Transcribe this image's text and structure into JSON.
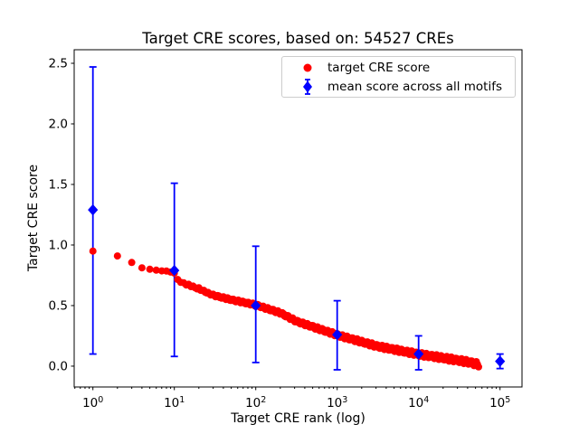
{
  "figure": {
    "title": "Target CRE scores, based on: 54527 CREs",
    "xlabel": "Target CRE rank (log)",
    "ylabel": "Target CRE score"
  },
  "legend": {
    "items": [
      {
        "label": "target CRE score",
        "marker": "red-circle",
        "color": "#ff0000"
      },
      {
        "label": "mean score across all motifs",
        "marker": "blue-diamond-errorbar",
        "color": "#0000ff"
      }
    ]
  },
  "chart_data": {
    "type": "scatter",
    "title": "Target CRE scores, based on: 54527 CREs",
    "xlabel": "Target CRE rank (log)",
    "ylabel": "Target CRE score",
    "x_scale": "log",
    "xlim_log10": [
      -0.23,
      5.27
    ],
    "ylim": [
      -0.172,
      2.612
    ],
    "x_tick_exponents": [
      0,
      1,
      2,
      3,
      4,
      5
    ],
    "y_ticks": [
      0.0,
      0.5,
      1.0,
      1.5,
      2.0,
      2.5
    ],
    "grid": false,
    "legend_position": "upper right",
    "n_cres": 54527,
    "series": [
      {
        "name": "target CRE score",
        "type": "scatter",
        "color": "#ff0000",
        "marker": "circle",
        "marker_radius_px": 4,
        "max_rank": 54527,
        "curve_log10rank_score": [
          [
            0.0,
            0.95
          ],
          [
            0.3,
            0.91
          ],
          [
            0.48,
            0.855
          ],
          [
            0.6,
            0.812
          ],
          [
            0.7,
            0.8
          ],
          [
            0.78,
            0.792
          ],
          [
            0.9,
            0.782
          ],
          [
            1.0,
            0.762
          ],
          [
            1.04,
            0.72
          ],
          [
            1.08,
            0.695
          ],
          [
            1.18,
            0.668
          ],
          [
            1.3,
            0.64
          ],
          [
            1.48,
            0.585
          ],
          [
            1.7,
            0.548
          ],
          [
            2.0,
            0.505
          ],
          [
            2.3,
            0.44
          ],
          [
            2.5,
            0.37
          ],
          [
            3.0,
            0.257
          ],
          [
            3.5,
            0.163
          ],
          [
            4.0,
            0.098
          ],
          [
            4.3,
            0.068
          ],
          [
            4.6,
            0.035
          ],
          [
            4.7366,
            0.013
          ]
        ]
      },
      {
        "name": "mean score across all motifs",
        "type": "scatter-errorbar",
        "color": "#0000ff",
        "marker": "diamond",
        "points": [
          {
            "x": 1,
            "mean": 1.29,
            "lo": 0.1,
            "hi": 2.47
          },
          {
            "x": 10,
            "mean": 0.79,
            "lo": 0.08,
            "hi": 1.51
          },
          {
            "x": 100,
            "mean": 0.5,
            "lo": 0.03,
            "hi": 0.99
          },
          {
            "x": 1000,
            "mean": 0.26,
            "lo": -0.03,
            "hi": 0.54
          },
          {
            "x": 10000,
            "mean": 0.1,
            "lo": -0.03,
            "hi": 0.25
          },
          {
            "x": 100000,
            "mean": 0.04,
            "lo": -0.02,
            "hi": 0.1
          }
        ]
      }
    ]
  }
}
